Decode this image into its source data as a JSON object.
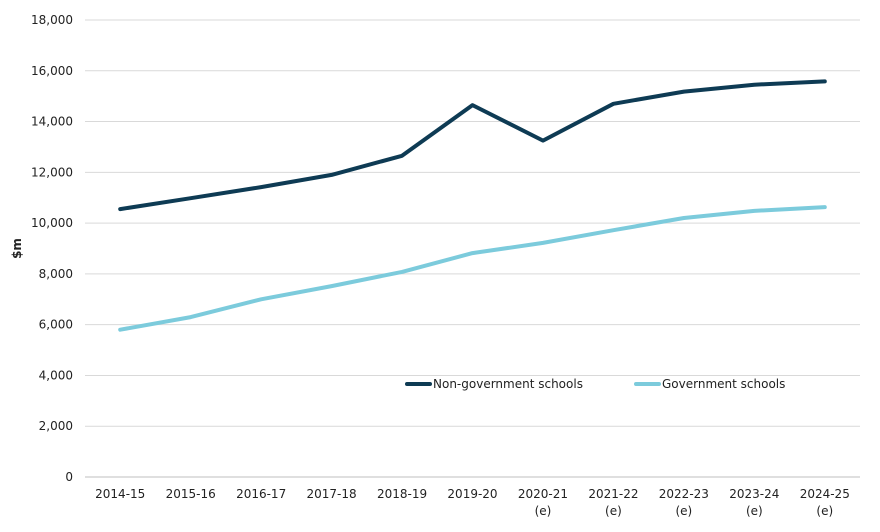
{
  "chart_data": {
    "type": "line",
    "title": "",
    "xlabel": "",
    "ylabel": "$m",
    "ylim": [
      0,
      18000
    ],
    "yticks": [
      0,
      2000,
      4000,
      6000,
      8000,
      10000,
      12000,
      14000,
      16000,
      18000
    ],
    "ytick_labels": [
      "0",
      "2,000",
      "4,000",
      "6,000",
      "8,000",
      "10,000",
      "12,000",
      "14,000",
      "16,000",
      "18,000"
    ],
    "categories": [
      "2014-15",
      "2015-16",
      "2016-17",
      "2017-18",
      "2018-19",
      "2019-20",
      "2020-21",
      "2021-22",
      "2022-23",
      "2023-24",
      "2024-25"
    ],
    "category_sublabels": [
      "",
      "",
      "",
      "",
      "",
      "",
      "(e)",
      "(e)",
      "(e)",
      "(e)",
      "(e)"
    ],
    "grid": "horizontal",
    "legend_position": "inside-bottom-right",
    "series": [
      {
        "name": "Non-government schools",
        "color": "#0e3b54",
        "values": [
          10550,
          10980,
          11420,
          11900,
          12650,
          14650,
          13250,
          14700,
          15180,
          15450,
          15580
        ]
      },
      {
        "name": "Government schools",
        "color": "#7ccbdc",
        "values": [
          5800,
          6300,
          7000,
          7520,
          8080,
          8820,
          9220,
          9720,
          10200,
          10480,
          10630
        ]
      }
    ]
  }
}
